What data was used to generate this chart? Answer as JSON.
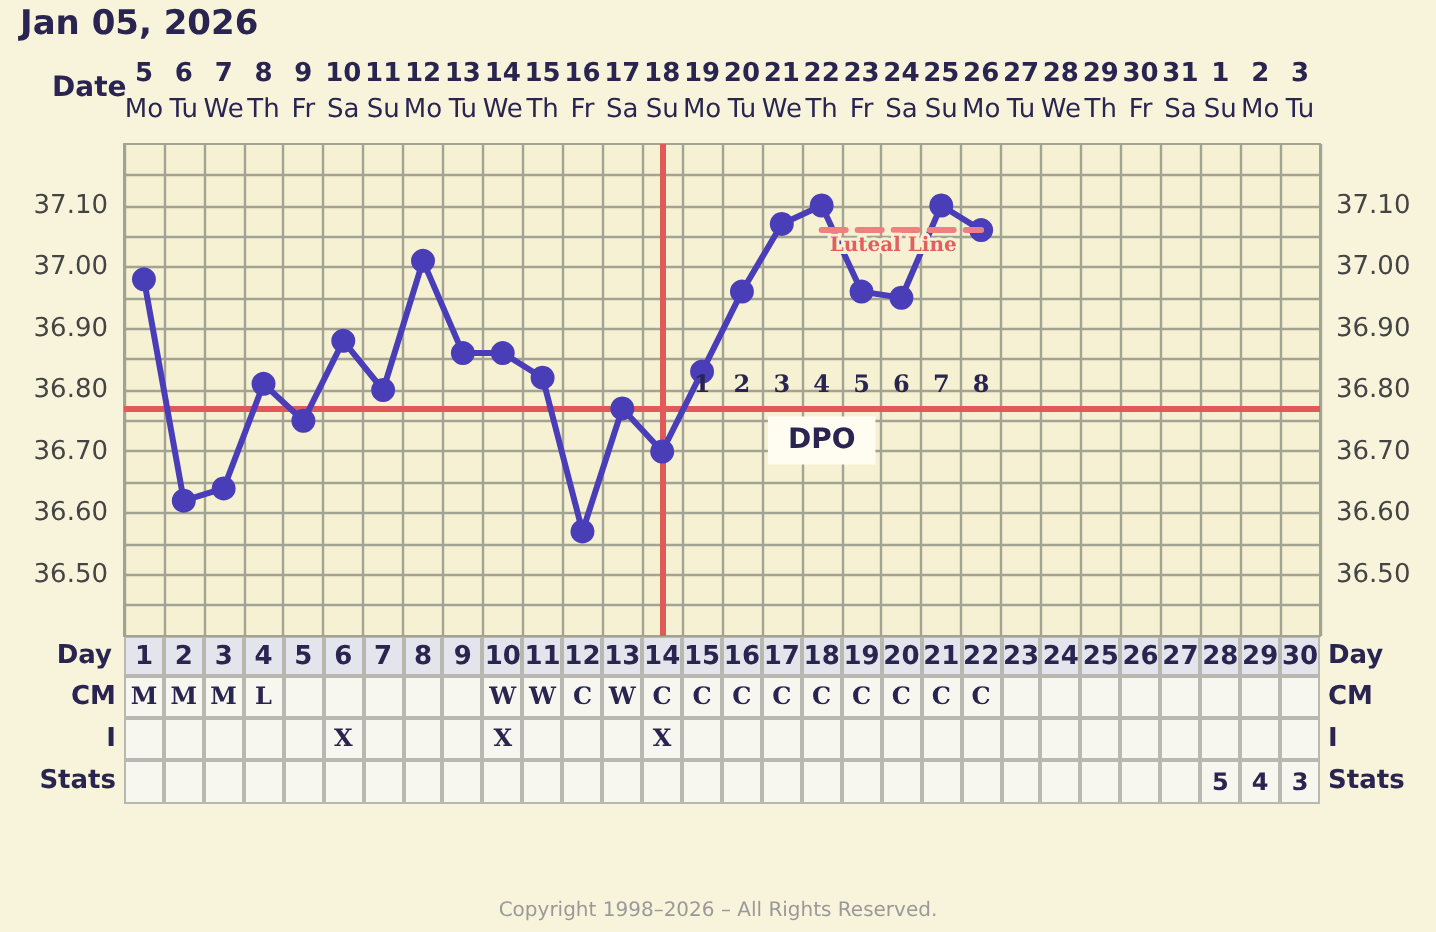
{
  "chart_data": [
    {
      "type": "line",
      "title": "Jan 05, 2026",
      "xlabel": "Date",
      "x2label": "Day",
      "x": [
        "2026-01-05",
        "2026-01-06",
        "2026-01-07",
        "2026-01-08",
        "2026-01-09",
        "2026-01-10",
        "2026-01-11",
        "2026-01-12",
        "2026-01-13",
        "2026-01-14",
        "2026-01-15",
        "2026-01-16",
        "2026-01-17",
        "2026-01-18",
        "2026-01-19",
        "2026-01-20",
        "2026-01-21",
        "2026-01-22",
        "2026-01-23",
        "2026-01-24",
        "2026-01-25",
        "2026-01-26"
      ],
      "series": [
        {
          "color": "#4a3db8",
          "values": [
            36.98,
            36.62,
            36.64,
            36.81,
            36.75,
            36.88,
            36.8,
            37.01,
            36.86,
            36.86,
            36.82,
            36.57,
            36.77,
            36.7,
            36.83,
            36.96,
            37.07,
            37.1,
            36.96,
            36.95,
            37.1,
            37.06
          ]
        },
        {
          "name": "Luteal Line",
          "type": "line",
          "color": "#f08080",
          "line_style": "dashed",
          "marker": "none",
          "x": [
            "2026-01-22",
            "2026-01-26"
          ],
          "values": [
            37.06,
            37.06
          ]
        }
      ],
      "xlim": [
        "2026-01-04T12:00",
        "2026-02-03T12:00"
      ],
      "xticks": [
        {
          "value": "2026-01-05",
          "label": "5\nMo"
        },
        {
          "value": "2026-01-06",
          "label": "6\nTu"
        },
        {
          "value": "2026-01-07",
          "label": "7\nWe"
        },
        {
          "value": "2026-01-08",
          "label": "8\nTh"
        },
        {
          "value": "2026-01-09",
          "label": "9\nFr"
        },
        {
          "value": "2026-01-10",
          "label": "10\nSa"
        },
        {
          "value": "2026-01-11",
          "label": "11\nSu"
        },
        {
          "value": "2026-01-12",
          "label": "12\nMo"
        },
        {
          "value": "2026-01-13",
          "label": "13\nTu"
        },
        {
          "value": "2026-01-14",
          "label": "14\nWe"
        },
        {
          "value": "2026-01-15",
          "label": "15\nTh"
        },
        {
          "value": "2026-01-16",
          "label": "16\nFr"
        },
        {
          "value": "2026-01-17",
          "label": "17\nSa"
        },
        {
          "value": "2026-01-18",
          "label": "18\nSu"
        },
        {
          "value": "2026-01-19",
          "label": "19\nMo"
        },
        {
          "value": "2026-01-20",
          "label": "20\nTu"
        },
        {
          "value": "2026-01-21",
          "label": "21\nWe"
        },
        {
          "value": "2026-01-22",
          "label": "22\nTh"
        },
        {
          "value": "2026-01-23",
          "label": "23\nFr"
        },
        {
          "value": "2026-01-24",
          "label": "24\nSa"
        },
        {
          "value": "2026-01-25",
          "label": "25\nSu"
        },
        {
          "value": "2026-01-26",
          "label": "26\nMo"
        },
        {
          "value": "2026-01-27",
          "label": "27\nTu"
        },
        {
          "value": "2026-01-28",
          "label": "28\nWe"
        },
        {
          "value": "2026-01-29",
          "label": "29\nTh"
        },
        {
          "value": "2026-01-30",
          "label": "30\nFr"
        },
        {
          "value": "2026-01-31",
          "label": "31\nSa"
        },
        {
          "value": "2026-02-01",
          "label": "1\nSu"
        },
        {
          "value": "2026-02-02",
          "label": "2\nMo"
        },
        {
          "value": "2026-02-03",
          "label": "3\nTu"
        }
      ],
      "x2lim": [
        0.5,
        30.5
      ],
      "x2ticks": [
        1,
        2,
        3,
        4,
        5,
        6,
        7,
        8,
        9,
        10,
        11,
        12,
        13,
        14,
        15,
        16,
        17,
        18,
        19,
        20,
        21,
        22,
        23,
        24,
        25,
        26,
        27,
        28,
        29,
        30
      ],
      "ylim": [
        36.4,
        37.2
      ],
      "yticks": [
        {
          "value": 36.45,
          "label": null
        },
        {
          "value": 36.5,
          "label": "36.50"
        },
        {
          "value": 36.55,
          "label": null
        },
        {
          "value": 36.6,
          "label": "36.60"
        },
        {
          "value": 36.65,
          "label": null
        },
        {
          "value": 36.7,
          "label": "36.70"
        },
        {
          "value": 36.75,
          "label": null
        },
        {
          "value": 36.8,
          "label": "36.80"
        },
        {
          "value": 36.85,
          "label": null
        },
        {
          "value": 36.9,
          "label": "36.90"
        },
        {
          "value": 36.95,
          "label": null
        },
        {
          "value": 37.0,
          "label": "37.00"
        },
        {
          "value": 37.05,
          "label": null
        },
        {
          "value": 37.1,
          "label": "37.10"
        },
        {
          "value": 37.15,
          "label": null
        }
      ],
      "y2lim": [
        36.4,
        37.2
      ],
      "y2ticks": [
        {
          "value": 36.45,
          "label": null
        },
        {
          "value": 36.5,
          "label": "36.50"
        },
        {
          "value": 36.55,
          "label": null
        },
        {
          "value": 36.6,
          "label": "36.60"
        },
        {
          "value": 36.65,
          "label": null
        },
        {
          "value": 36.7,
          "label": "36.70"
        },
        {
          "value": 36.75,
          "label": null
        },
        {
          "value": 36.8,
          "label": "36.80"
        },
        {
          "value": 36.85,
          "label": null
        },
        {
          "value": 36.9,
          "label": "36.90"
        },
        {
          "value": 36.95,
          "label": null
        },
        {
          "value": 37.0,
          "label": "37.00"
        },
        {
          "value": 37.05,
          "label": null
        },
        {
          "value": 37.1,
          "label": "37.10"
        },
        {
          "value": 37.15,
          "label": null
        }
      ],
      "ref_lines": [
        {
          "axis": "y",
          "value": 36.77,
          "color": "#e05a5a"
        },
        {
          "axis": "x",
          "value": "2026-01-18",
          "color": "#e05a5a"
        }
      ],
      "annotations": [
        {
          "text": "1",
          "x": "2026-01-19",
          "y": 36.77
        },
        {
          "text": "2",
          "x": "2026-01-20",
          "y": 36.77
        },
        {
          "text": "3",
          "x": "2026-01-21",
          "y": 36.77
        },
        {
          "text": "4",
          "x": "2026-01-22",
          "y": 36.77
        },
        {
          "text": "5",
          "x": "2026-01-23",
          "y": 36.77
        },
        {
          "text": "6",
          "x": "2026-01-24",
          "y": 36.77
        },
        {
          "text": "7",
          "x": "2026-01-25",
          "y": 36.77
        },
        {
          "text": "8",
          "x": "2026-01-26",
          "y": 36.77
        },
        {
          "text": "DPO",
          "x": "2026-01-22",
          "y": 36.77
        },
        "Copyright 1998–2026 – All Rights Reserved."
      ],
      "grid": true,
      "legend": false,
      "marker": "circle",
      "line_style": "solid"
    },
    {
      "type": "other",
      "y_categories": [
        "CM",
        "I",
        "Stats"
      ],
      "cell_labels": [
        [
          "M",
          "M",
          "M",
          "L",
          null,
          null,
          null,
          null,
          null,
          "W",
          "W",
          "C",
          "W",
          "C",
          "C",
          "C",
          "C",
          "C",
          "C",
          "C",
          "C",
          "C",
          null,
          null,
          null,
          null,
          null,
          null,
          null,
          null
        ],
        [
          null,
          null,
          null,
          null,
          null,
          "X",
          null,
          null,
          null,
          "X",
          null,
          null,
          null,
          "X",
          null,
          null,
          null,
          null,
          null,
          null,
          null,
          null,
          null,
          null,
          null,
          null,
          null,
          null,
          null,
          null
        ],
        [
          null,
          null,
          null,
          null,
          null,
          null,
          null,
          null,
          null,
          null,
          null,
          null,
          null,
          null,
          null,
          null,
          null,
          null,
          null,
          null,
          null,
          null,
          null,
          null,
          null,
          null,
          null,
          "5",
          "4",
          "3"
        ]
      ]
    }
  ]
}
